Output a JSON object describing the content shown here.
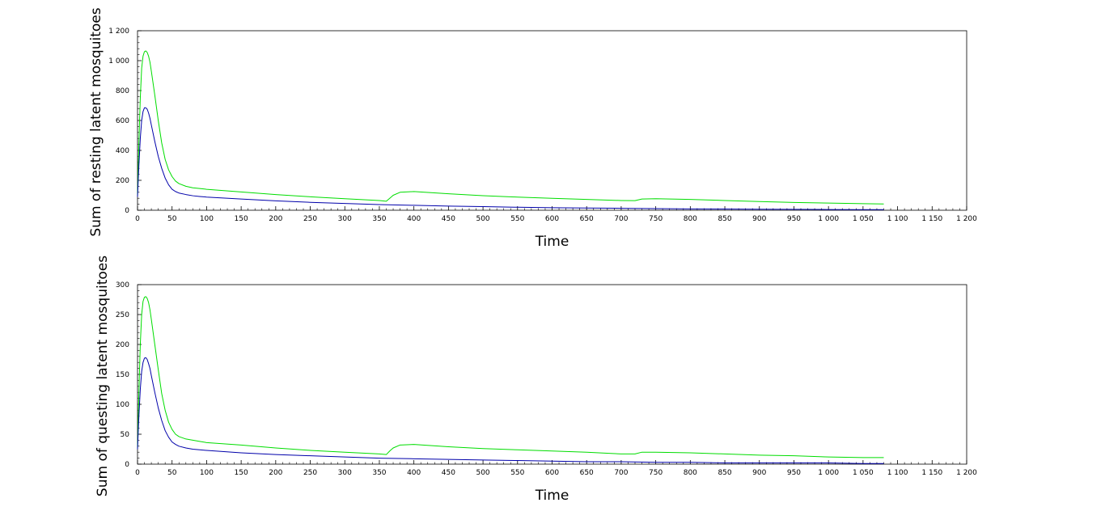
{
  "chart_data": [
    {
      "type": "line",
      "xlabel": "Time",
      "ylabel": "Sum of resting latent mosquitoes",
      "xlim": [
        0,
        1200
      ],
      "ylim": [
        0,
        1200
      ],
      "xticks": [
        0,
        50,
        100,
        150,
        200,
        250,
        300,
        350,
        400,
        450,
        500,
        550,
        600,
        650,
        700,
        750,
        800,
        850,
        900,
        950,
        1000,
        1050,
        1100,
        1150,
        1200
      ],
      "xtick_labels": [
        "0",
        "50",
        "100",
        "150",
        "200",
        "250",
        "300",
        "350",
        "400",
        "450",
        "500",
        "550",
        "600",
        "650",
        "700",
        "750",
        "800",
        "850",
        "900",
        "950",
        "1 000",
        "1 050",
        "1 100",
        "1 150",
        "1 200"
      ],
      "yticks": [
        0,
        200,
        400,
        600,
        800,
        1000,
        1200
      ],
      "ytick_labels": [
        "0",
        "200",
        "400",
        "600",
        "800",
        "1 000",
        "1 200"
      ],
      "grid": false,
      "series": [
        {
          "color": "#00dd00",
          "x": [
            0,
            2,
            4,
            6,
            8,
            10,
            12,
            14,
            16,
            18,
            20,
            25,
            30,
            35,
            40,
            45,
            50,
            55,
            60,
            70,
            80,
            90,
            100,
            150,
            200,
            250,
            300,
            350,
            360,
            365,
            370,
            380,
            400,
            450,
            500,
            550,
            600,
            650,
            700,
            720,
            730,
            750,
            800,
            850,
            900,
            950,
            1000,
            1050,
            1080
          ],
          "y": [
            100,
            450,
            750,
            950,
            1030,
            1060,
            1065,
            1055,
            1030,
            990,
            930,
            770,
            600,
            450,
            340,
            270,
            225,
            195,
            178,
            160,
            150,
            145,
            140,
            122,
            105,
            90,
            77,
            65,
            60,
            80,
            100,
            120,
            125,
            110,
            97,
            88,
            80,
            72,
            65,
            64,
            75,
            77,
            72,
            65,
            58,
            52,
            48,
            44,
            42
          ]
        },
        {
          "color": "#0000aa",
          "x": [
            0,
            2,
            4,
            6,
            8,
            10,
            12,
            14,
            16,
            18,
            20,
            25,
            30,
            35,
            40,
            45,
            50,
            55,
            60,
            70,
            80,
            90,
            100,
            150,
            200,
            250,
            300,
            350,
            400,
            450,
            500,
            550,
            600,
            650,
            700,
            750,
            800,
            850,
            900,
            950,
            1000,
            1050,
            1080
          ],
          "y": [
            90,
            300,
            480,
            600,
            660,
            685,
            685,
            675,
            650,
            615,
            570,
            460,
            360,
            280,
            215,
            170,
            140,
            125,
            115,
            105,
            97,
            92,
            88,
            75,
            63,
            53,
            45,
            38,
            33,
            28,
            24,
            20,
            17,
            15,
            13,
            11,
            9,
            8,
            7,
            6,
            5,
            4,
            4
          ]
        }
      ]
    },
    {
      "type": "line",
      "xlabel": "Time",
      "ylabel": "Sum of questing latent mosquitoes",
      "xlim": [
        0,
        1200
      ],
      "ylim": [
        0,
        300
      ],
      "xticks": [
        0,
        50,
        100,
        150,
        200,
        250,
        300,
        350,
        400,
        450,
        500,
        550,
        600,
        650,
        700,
        750,
        800,
        850,
        900,
        950,
        1000,
        1050,
        1100,
        1150,
        1200
      ],
      "xtick_labels": [
        "0",
        "50",
        "100",
        "150",
        "200",
        "250",
        "300",
        "350",
        "400",
        "450",
        "500",
        "550",
        "600",
        "650",
        "700",
        "750",
        "800",
        "850",
        "900",
        "950",
        "1 000",
        "1 050",
        "1 100",
        "1 150",
        "1 200"
      ],
      "yticks": [
        0,
        50,
        100,
        150,
        200,
        250,
        300
      ],
      "ytick_labels": [
        "0",
        "50",
        "100",
        "150",
        "200",
        "250",
        "300"
      ],
      "grid": false,
      "series": [
        {
          "color": "#00dd00",
          "x": [
            0,
            2,
            4,
            6,
            8,
            10,
            12,
            14,
            16,
            18,
            20,
            25,
            30,
            35,
            40,
            45,
            50,
            55,
            60,
            70,
            80,
            90,
            100,
            150,
            200,
            250,
            300,
            350,
            360,
            365,
            370,
            380,
            400,
            450,
            500,
            550,
            600,
            650,
            700,
            720,
            730,
            750,
            800,
            850,
            900,
            950,
            1000,
            1050,
            1080
          ],
          "y": [
            25,
            120,
            200,
            250,
            272,
            279,
            280,
            277,
            270,
            258,
            242,
            200,
            158,
            118,
            90,
            70,
            58,
            50,
            46,
            42,
            40,
            38,
            36,
            32,
            27,
            23,
            20,
            17,
            16,
            22,
            27,
            32,
            33,
            29,
            26,
            24,
            22,
            20,
            17,
            17,
            20,
            20,
            19,
            17,
            15,
            14,
            12,
            11,
            11
          ]
        },
        {
          "color": "#0000aa",
          "x": [
            0,
            2,
            4,
            6,
            8,
            10,
            12,
            14,
            16,
            18,
            20,
            25,
            30,
            35,
            40,
            45,
            50,
            55,
            60,
            70,
            80,
            90,
            100,
            150,
            200,
            250,
            300,
            350,
            400,
            450,
            500,
            550,
            600,
            650,
            700,
            750,
            800,
            850,
            900,
            950,
            1000,
            1050,
            1080
          ],
          "y": [
            25,
            80,
            125,
            155,
            170,
            177,
            178,
            175,
            168,
            160,
            148,
            120,
            94,
            73,
            56,
            45,
            37,
            33,
            30,
            27,
            25,
            24,
            23,
            19,
            16,
            14,
            12,
            10,
            9,
            8,
            7,
            6,
            5,
            4,
            4,
            3,
            3,
            2,
            2,
            2,
            2,
            1,
            1
          ]
        }
      ]
    }
  ]
}
